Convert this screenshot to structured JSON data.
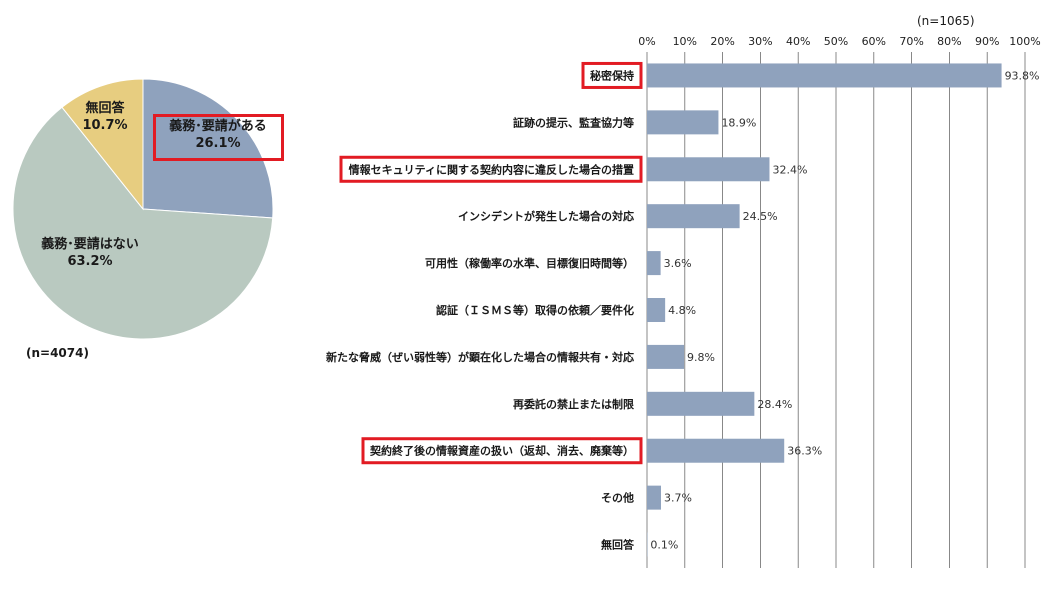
{
  "chart_data": [
    {
      "type": "pie",
      "n_label": "(n=4074)",
      "slices": [
        {
          "label": "義務･要請がある",
          "value": 26.1,
          "value_label": "26.1%",
          "color": "#8fa2bd",
          "highlighted": true
        },
        {
          "label": "義務･要請はない",
          "value": 63.2,
          "value_label": "63.2%",
          "color": "#b9c9c0",
          "highlighted": false
        },
        {
          "label": "無回答",
          "value": 10.7,
          "value_label": "10.7%",
          "color": "#e7cd80",
          "highlighted": false
        }
      ]
    },
    {
      "type": "bar",
      "orientation": "horizontal",
      "n_label": "(n=1065)",
      "xlim": [
        0,
        100
      ],
      "x_ticks": [
        "0%",
        "10%",
        "20%",
        "30%",
        "40%",
        "50%",
        "60%",
        "70%",
        "80%",
        "90%",
        "100%"
      ],
      "grid": true,
      "bar_color": "#8fa2bd",
      "categories": [
        "秘密保持",
        "証跡の提示、監査協力等",
        "情報セキュリティに関する契約内容に違反した場合の措置",
        "インシデントが発生した場合の対応",
        "可用性（稼働率の水準、目標復旧時間等）",
        "認証（ＩＳＭＳ等）取得の依頼／要件化",
        "新たな脅威（ぜい弱性等）が顕在化した場合の情報共有・対応",
        "再委託の禁止または制限",
        "契約終了後の情報資産の扱い（返却、消去、廃棄等）",
        "その他",
        "無回答"
      ],
      "values": [
        93.8,
        18.9,
        32.4,
        24.5,
        3.6,
        4.8,
        9.8,
        28.4,
        36.3,
        3.7,
        0.1
      ],
      "value_labels": [
        "93.8%",
        "18.9%",
        "32.4%",
        "24.5%",
        "3.6%",
        "4.8%",
        "9.8%",
        "28.4%",
        "36.3%",
        "3.7%",
        "0.1%"
      ],
      "highlighted": [
        true,
        false,
        true,
        false,
        false,
        false,
        false,
        false,
        true,
        false,
        false
      ]
    }
  ]
}
